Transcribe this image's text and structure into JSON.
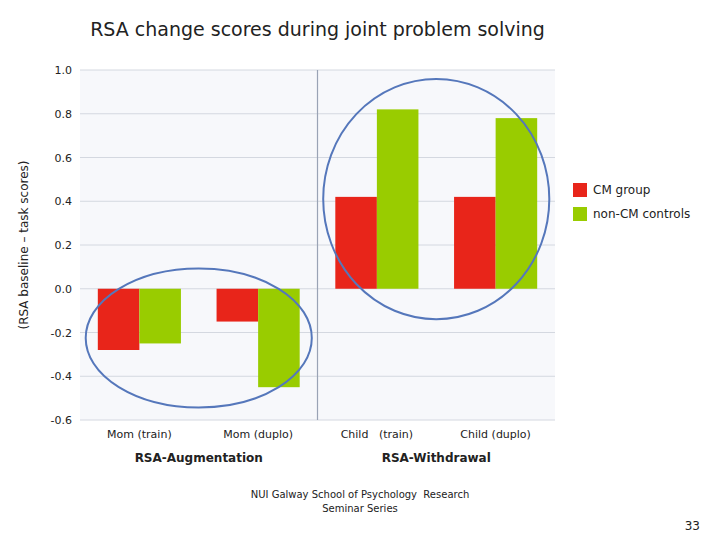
{
  "chart_data": {
    "type": "bar",
    "title": "RSA change scores during joint problem solving",
    "y_label": "(RSA baseline – task scores)",
    "categories": [
      "Mom (train)",
      "Mom (duplo)",
      "Child   (train)",
      "Child (duplo)"
    ],
    "series": [
      {
        "name": "CM group",
        "color": "#e8251a",
        "values": [
          -0.28,
          -0.15,
          0.42,
          0.42
        ]
      },
      {
        "name": "non-CM controls",
        "color": "#99cc00",
        "values": [
          -0.25,
          -0.45,
          0.82,
          0.78
        ]
      }
    ],
    "ylim": [
      -0.6,
      1.0
    ],
    "yticks": [
      -0.6,
      -0.4,
      -0.2,
      {
        "value": 0,
        "label": "0.0"
      },
      0.2,
      0.4,
      0.6,
      0.8,
      {
        "value": 1,
        "label": "1.0"
      }
    ],
    "grid": true,
    "legend": "right",
    "annotations": [
      "RSA-Augmentation",
      "RSA-Withdrawal"
    ],
    "footer": [
      "NUI Galway School of Psychology  Research",
      "Seminar Series"
    ],
    "page_number": "33"
  }
}
